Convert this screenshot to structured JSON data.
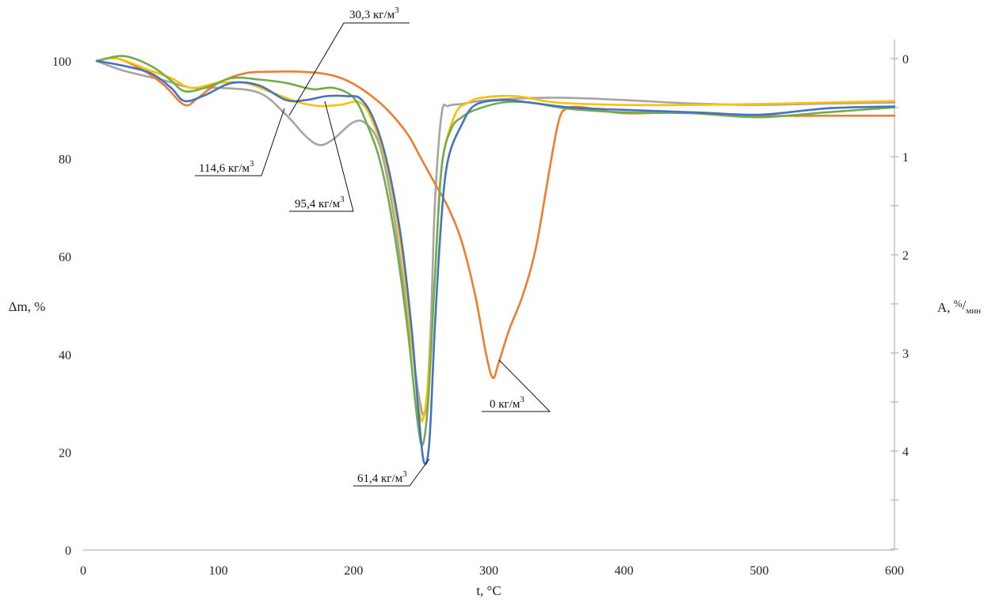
{
  "chart_data": {
    "type": "line",
    "xlabel": "t, °C",
    "ylabel_left": "Δm, %",
    "ylabel_right": "A, %/мин",
    "ylabel_right_parts": {
      "main": "A, ",
      "num": "%",
      "sep": "/",
      "den": "мин"
    },
    "x_ticks": [
      "0",
      "100",
      "200",
      "300",
      "400",
      "500",
      "600"
    ],
    "y_left_ticks": [
      "0",
      "20",
      "40",
      "60",
      "80",
      "100"
    ],
    "y_right_ticks": [
      "0",
      "1",
      "2",
      "3",
      "4"
    ],
    "xlim": [
      0,
      600
    ],
    "ylim_left": [
      0,
      100
    ],
    "ylim_right": [
      5,
      0
    ],
    "grid": false,
    "colors": {
      "orange": "#ed7d31",
      "gray": "#a5a5a5",
      "yellow": "#ffc000",
      "green": "#70ad47",
      "blue": "#4472c4"
    },
    "series": [
      {
        "key": "gray",
        "color": "#a5a5a5",
        "x": [
          10,
          30,
          60,
          80,
          100,
          130,
          150,
          165,
          175,
          185,
          200,
          210,
          220,
          230,
          240,
          248,
          253,
          257,
          260,
          265,
          270,
          280,
          300,
          350,
          400,
          450,
          500,
          550,
          600
        ],
        "y": [
          100,
          98,
          96,
          94.5,
          94.5,
          93.5,
          89,
          84.5,
          82.8,
          84,
          87.5,
          87,
          82,
          68,
          48,
          32,
          28.2,
          45,
          70,
          89,
          90.8,
          91.2,
          92,
          92.5,
          92,
          91.3,
          91,
          91.3,
          91.5
        ]
      },
      {
        "key": "orange",
        "color": "#ed7d31",
        "x": [
          10,
          25,
          45,
          60,
          75,
          85,
          100,
          120,
          140,
          160,
          180,
          195,
          210,
          225,
          240,
          250,
          260,
          270,
          280,
          290,
          298,
          303,
          307,
          315,
          325,
          335,
          345,
          352,
          358,
          370,
          400,
          450,
          500,
          550,
          600
        ],
        "y": [
          100,
          100.5,
          98,
          95,
          91,
          92.5,
          95.5,
          97.5,
          97.8,
          97.8,
          97.3,
          96,
          93.5,
          90,
          85,
          80,
          75,
          70,
          63,
          52,
          40,
          35.2,
          38,
          45,
          52,
          62,
          78,
          88,
          90.3,
          90.5,
          89.3,
          89.5,
          88.8,
          88.8,
          88.8
        ]
      },
      {
        "key": "yellow",
        "color": "#ffc000",
        "x": [
          10,
          25,
          50,
          65,
          80,
          100,
          120,
          140,
          160,
          175,
          190,
          205,
          215,
          225,
          235,
          242,
          248,
          251,
          255,
          260,
          265,
          275,
          285,
          295,
          320,
          350,
          400,
          450,
          500,
          550,
          600
        ],
        "y": [
          100,
          100.5,
          98,
          96.5,
          94.5,
          95.5,
          95.5,
          93.5,
          91.5,
          90.8,
          91,
          91.5,
          87,
          78,
          62,
          45,
          30,
          26.5,
          34,
          55,
          78,
          89,
          91.5,
          92.5,
          92.8,
          91.5,
          91,
          91,
          91.2,
          91.5,
          91.8
        ]
      },
      {
        "key": "green",
        "color": "#70ad47",
        "x": [
          10,
          30,
          50,
          65,
          75,
          90,
          110,
          130,
          150,
          170,
          185,
          200,
          210,
          220,
          230,
          240,
          247,
          251,
          255,
          260,
          265,
          272,
          280,
          290,
          310,
          330,
          360,
          400,
          450,
          500,
          550,
          600
        ],
        "y": [
          100,
          101,
          99,
          96,
          93.8,
          94.5,
          96.5,
          96.2,
          95.5,
          94.2,
          94.5,
          92.5,
          87,
          79,
          65,
          45,
          27,
          21.5,
          30,
          55,
          78,
          86,
          88.5,
          90,
          91.5,
          91.5,
          90.2,
          89.5,
          89.3,
          88.5,
          89.5,
          90.5
        ]
      },
      {
        "key": "blue",
        "color": "#4472c4",
        "x": [
          10,
          30,
          50,
          65,
          75,
          90,
          110,
          130,
          150,
          165,
          180,
          195,
          205,
          215,
          225,
          235,
          243,
          248,
          252,
          256,
          260,
          265,
          270,
          280,
          290,
          310,
          330,
          360,
          400,
          450,
          500,
          550,
          600
        ],
        "y": [
          100,
          99,
          97.5,
          94.5,
          91.8,
          93,
          95.5,
          95,
          92,
          92,
          92.8,
          92.8,
          92.3,
          88,
          79,
          64,
          45,
          28,
          18,
          22,
          45,
          68,
          80,
          87,
          91,
          92,
          91.5,
          90.5,
          90,
          89.5,
          89,
          90.3,
          90.7
        ]
      }
    ],
    "annotations": [
      {
        "text": "30,3 кг/м",
        "sup": "3"
      },
      {
        "text": "114,6 кг/м",
        "sup": "3"
      },
      {
        "text": "95,4 кг/м",
        "sup": "3"
      },
      {
        "text": "0 кг/м",
        "sup": "3"
      },
      {
        "text": "61,4 кг/м",
        "sup": "3"
      }
    ]
  }
}
